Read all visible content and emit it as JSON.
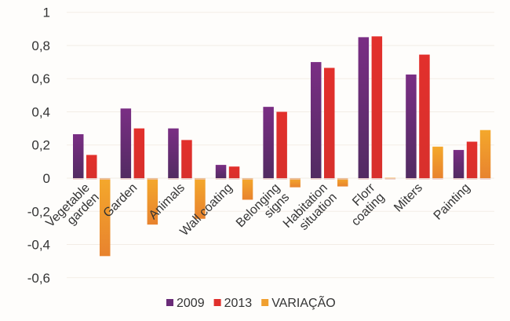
{
  "chart_data": {
    "type": "bar",
    "title": "",
    "xlabel": "",
    "ylabel": "",
    "ylim": [
      -0.6,
      1
    ],
    "yticks": [
      "1",
      "0,8",
      "0,6",
      "0,4",
      "0,2",
      "0",
      "-0,2",
      "-0,4",
      "-0,6"
    ],
    "ytick_values": [
      1,
      0.8,
      0.6,
      0.4,
      0.2,
      0,
      -0.2,
      -0.4,
      -0.6
    ],
    "grid": true,
    "legend_position": "bottom",
    "categories": [
      "Vegetable garden",
      "Garden",
      "Animals",
      "Wall coating",
      "Belonging signs",
      "Habitation situation",
      "Florr coating",
      "Miters",
      "Painting"
    ],
    "series": [
      {
        "name": "2009",
        "color": "#6a2c78",
        "values": [
          0.265,
          0.42,
          0.3,
          0.08,
          0.43,
          0.7,
          0.85,
          0.625,
          0.17
        ]
      },
      {
        "name": "2013",
        "color": "#e0302c",
        "values": [
          0.14,
          0.3,
          0.23,
          0.07,
          0.4,
          0.665,
          0.855,
          0.745,
          0.22
        ]
      },
      {
        "name": "VARIAÇÃO",
        "color": "#f0a030",
        "values": [
          -0.47,
          -0.28,
          -0.245,
          -0.13,
          -0.055,
          -0.05,
          0.002,
          0.19,
          0.29
        ]
      }
    ]
  }
}
